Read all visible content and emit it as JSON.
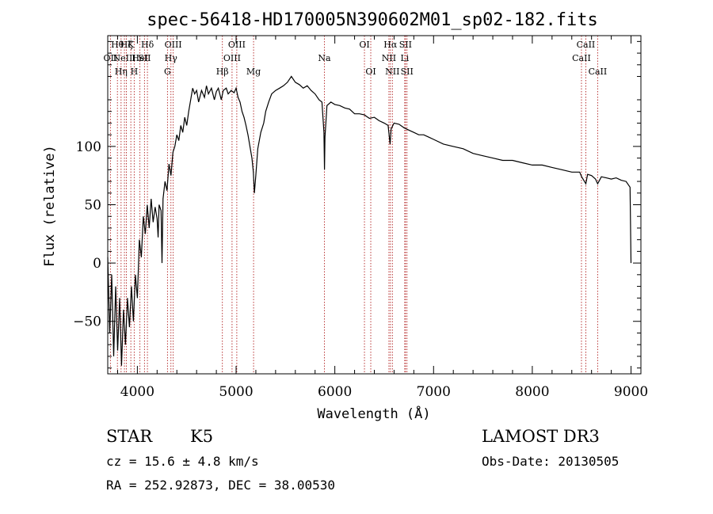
{
  "chart_data": {
    "type": "line",
    "title": "spec-56418-HD170005N390602M01_sp02-182.fits",
    "xlabel": "Wavelength (Å)",
    "ylabel": "Flux (relative)",
    "xlim": [
      3700,
      9100
    ],
    "ylim": [
      -95,
      195
    ],
    "xticks": [
      4000,
      5000,
      6000,
      7000,
      8000,
      9000
    ],
    "yticks": [
      -50,
      0,
      50,
      100
    ],
    "ytick_labels": [
      "−50",
      "0",
      "50",
      "100"
    ],
    "grid": false,
    "series": [
      {
        "name": "spectrum",
        "points": [
          [
            3700,
            5
          ],
          [
            3720,
            -60
          ],
          [
            3740,
            -10
          ],
          [
            3760,
            -80
          ],
          [
            3780,
            -20
          ],
          [
            3800,
            -75
          ],
          [
            3820,
            -30
          ],
          [
            3840,
            -88
          ],
          [
            3860,
            -40
          ],
          [
            3880,
            -70
          ],
          [
            3900,
            -30
          ],
          [
            3920,
            -55
          ],
          [
            3940,
            -20
          ],
          [
            3960,
            -50
          ],
          [
            3980,
            -10
          ],
          [
            4000,
            -30
          ],
          [
            4020,
            20
          ],
          [
            4040,
            5
          ],
          [
            4060,
            40
          ],
          [
            4080,
            25
          ],
          [
            4100,
            50
          ],
          [
            4120,
            30
          ],
          [
            4140,
            55
          ],
          [
            4160,
            35
          ],
          [
            4180,
            48
          ],
          [
            4200,
            38
          ],
          [
            4210,
            22
          ],
          [
            4220,
            50
          ],
          [
            4240,
            45
          ],
          [
            4250,
            0
          ],
          [
            4260,
            55
          ],
          [
            4280,
            70
          ],
          [
            4300,
            62
          ],
          [
            4320,
            85
          ],
          [
            4340,
            75
          ],
          [
            4360,
            95
          ],
          [
            4380,
            100
          ],
          [
            4400,
            110
          ],
          [
            4420,
            105
          ],
          [
            4440,
            118
          ],
          [
            4460,
            112
          ],
          [
            4480,
            125
          ],
          [
            4500,
            118
          ],
          [
            4520,
            130
          ],
          [
            4540,
            140
          ],
          [
            4560,
            150
          ],
          [
            4580,
            145
          ],
          [
            4600,
            148
          ],
          [
            4620,
            138
          ],
          [
            4650,
            148
          ],
          [
            4680,
            142
          ],
          [
            4700,
            152
          ],
          [
            4720,
            145
          ],
          [
            4750,
            150
          ],
          [
            4780,
            140
          ],
          [
            4800,
            147
          ],
          [
            4820,
            150
          ],
          [
            4850,
            140
          ],
          [
            4870,
            148
          ],
          [
            4900,
            150
          ],
          [
            4920,
            145
          ],
          [
            4950,
            148
          ],
          [
            4980,
            146
          ],
          [
            5000,
            150
          ],
          [
            5020,
            142
          ],
          [
            5040,
            138
          ],
          [
            5060,
            130
          ],
          [
            5080,
            125
          ],
          [
            5100,
            118
          ],
          [
            5120,
            110
          ],
          [
            5140,
            100
          ],
          [
            5160,
            90
          ],
          [
            5175,
            78
          ],
          [
            5185,
            60
          ],
          [
            5200,
            75
          ],
          [
            5220,
            98
          ],
          [
            5250,
            112
          ],
          [
            5280,
            120
          ],
          [
            5300,
            130
          ],
          [
            5330,
            138
          ],
          [
            5360,
            145
          ],
          [
            5400,
            148
          ],
          [
            5440,
            150
          ],
          [
            5480,
            152
          ],
          [
            5520,
            155
          ],
          [
            5560,
            160
          ],
          [
            5600,
            155
          ],
          [
            5640,
            153
          ],
          [
            5680,
            150
          ],
          [
            5720,
            152
          ],
          [
            5760,
            148
          ],
          [
            5800,
            145
          ],
          [
            5840,
            140
          ],
          [
            5870,
            138
          ],
          [
            5890,
            112
          ],
          [
            5895,
            80
          ],
          [
            5900,
            108
          ],
          [
            5920,
            135
          ],
          [
            5960,
            138
          ],
          [
            6000,
            136
          ],
          [
            6050,
            135
          ],
          [
            6100,
            133
          ],
          [
            6150,
            132
          ],
          [
            6200,
            128
          ],
          [
            6250,
            128
          ],
          [
            6300,
            127
          ],
          [
            6350,
            124
          ],
          [
            6400,
            125
          ],
          [
            6450,
            122
          ],
          [
            6500,
            120
          ],
          [
            6540,
            118
          ],
          [
            6560,
            102
          ],
          [
            6570,
            115
          ],
          [
            6600,
            120
          ],
          [
            6650,
            119
          ],
          [
            6700,
            116
          ],
          [
            6750,
            114
          ],
          [
            6800,
            112
          ],
          [
            6850,
            110
          ],
          [
            6900,
            110
          ],
          [
            6950,
            108
          ],
          [
            7000,
            106
          ],
          [
            7100,
            102
          ],
          [
            7200,
            100
          ],
          [
            7300,
            98
          ],
          [
            7400,
            94
          ],
          [
            7500,
            92
          ],
          [
            7600,
            90
          ],
          [
            7700,
            88
          ],
          [
            7800,
            88
          ],
          [
            7900,
            86
          ],
          [
            8000,
            84
          ],
          [
            8100,
            84
          ],
          [
            8200,
            82
          ],
          [
            8300,
            80
          ],
          [
            8400,
            78
          ],
          [
            8480,
            78
          ],
          [
            8500,
            74
          ],
          [
            8542,
            68
          ],
          [
            8560,
            76
          ],
          [
            8600,
            75
          ],
          [
            8640,
            72
          ],
          [
            8662,
            68
          ],
          [
            8700,
            74
          ],
          [
            8750,
            73
          ],
          [
            8800,
            72
          ],
          [
            8850,
            73
          ],
          [
            8900,
            71
          ],
          [
            8950,
            70
          ],
          [
            8990,
            65
          ],
          [
            9000,
            0
          ]
        ]
      }
    ],
    "emission_lines": [
      {
        "wavelength": 3727,
        "label": "OII",
        "row": 1
      },
      {
        "wavelength": 3798,
        "label": "Hθ",
        "row": 0
      },
      {
        "wavelength": 3835,
        "label": "Hη",
        "row": 2
      },
      {
        "wavelength": 3869,
        "label": "NeIII",
        "row": 1
      },
      {
        "wavelength": 3889,
        "label": "Hζ",
        "row": 0
      },
      {
        "wavelength": 3934,
        "label": "K",
        "row": 0
      },
      {
        "wavelength": 3968,
        "label": "H",
        "row": 2
      },
      {
        "wavelength": 4026,
        "label": "HeI",
        "row": 1
      },
      {
        "wavelength": 4072,
        "label": "SII",
        "row": 1
      },
      {
        "wavelength": 4102,
        "label": "Hδ",
        "row": 0
      },
      {
        "wavelength": 4305,
        "label": "G",
        "row": 2
      },
      {
        "wavelength": 4340,
        "label": "Hγ",
        "row": 1
      },
      {
        "wavelength": 4363,
        "label": "OIII",
        "row": 0
      },
      {
        "wavelength": 4861,
        "label": "Hβ",
        "row": 2
      },
      {
        "wavelength": 4959,
        "label": "OIII",
        "row": 1
      },
      {
        "wavelength": 5007,
        "label": "OIII",
        "row": 0
      },
      {
        "wavelength": 5177,
        "label": "Mg",
        "row": 2
      },
      {
        "wavelength": 5894,
        "label": "Na",
        "row": 1
      },
      {
        "wavelength": 6300,
        "label": "OI",
        "row": 0
      },
      {
        "wavelength": 6364,
        "label": "OI",
        "row": 2
      },
      {
        "wavelength": 6548,
        "label": "NII",
        "row": 1
      },
      {
        "wavelength": 6563,
        "label": "Hα",
        "row": 0
      },
      {
        "wavelength": 6583,
        "label": "NII",
        "row": 2
      },
      {
        "wavelength": 6708,
        "label": "Li",
        "row": 1
      },
      {
        "wavelength": 6716,
        "label": "SII",
        "row": 0
      },
      {
        "wavelength": 6731,
        "label": "SII",
        "row": 2
      },
      {
        "wavelength": 8498,
        "label": "CaII",
        "row": 1
      },
      {
        "wavelength": 8542,
        "label": "CaII",
        "row": 0
      },
      {
        "wavelength": 8662,
        "label": "CaII",
        "row": 2
      }
    ]
  },
  "footer": {
    "object_type": "STAR",
    "spectral_class": "K5",
    "survey": "LAMOST DR3",
    "redshift": "cz = 15.6 ± 4.8 km/s",
    "obs_date": "Obs-Date: 20130505",
    "coordinates": "RA = 252.92873, DEC =  38.00530"
  },
  "colors": {
    "axis": "#000000",
    "spectrum": "#000000",
    "line_marker": "#b22222"
  }
}
